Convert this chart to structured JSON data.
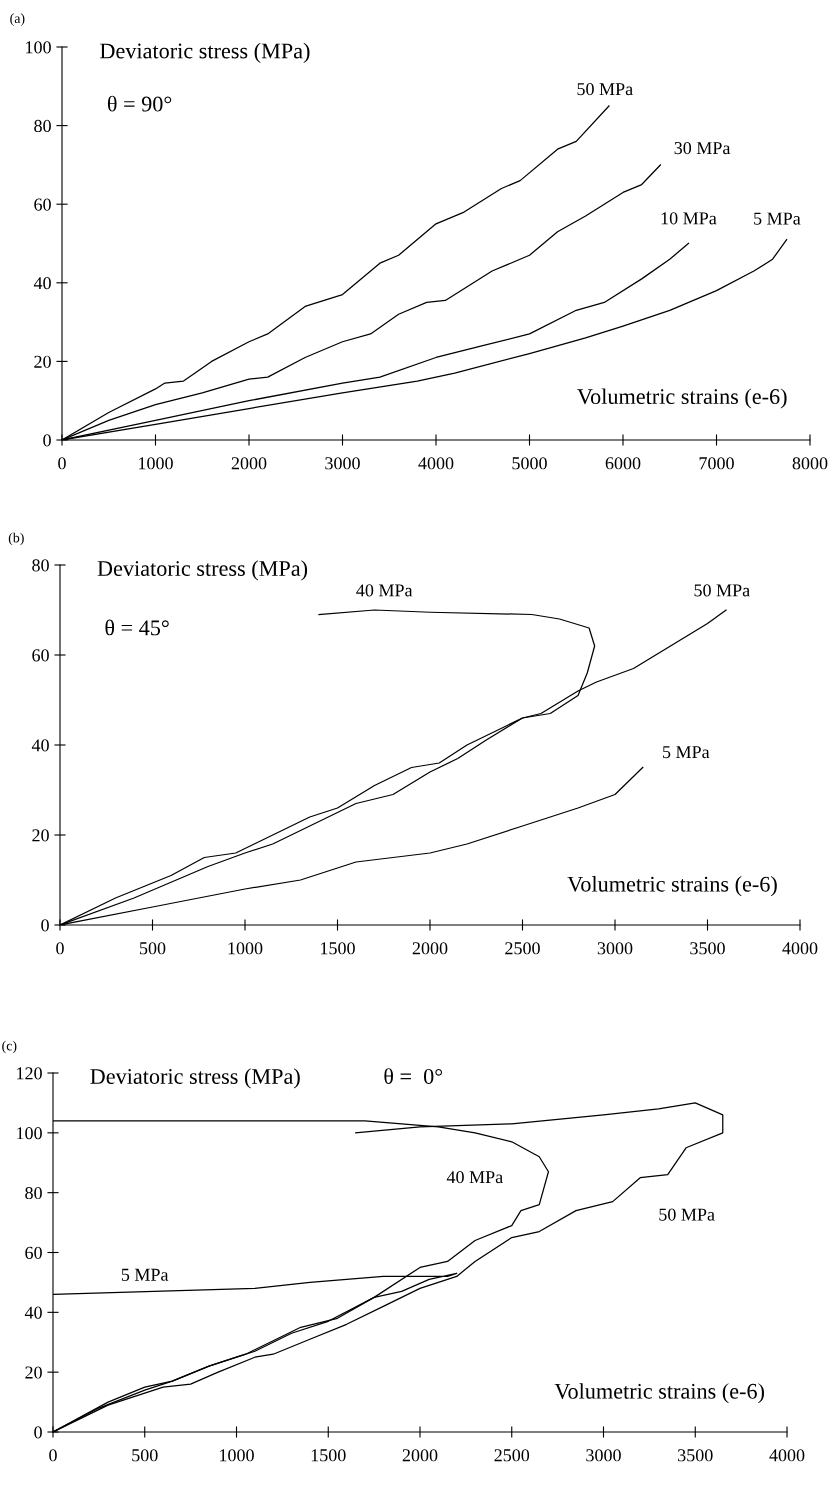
{
  "chart_data": [
    {
      "type": "line",
      "title": "(a)",
      "xlabel": "Volumetric strains (e-6)",
      "ylabel": "Deviatoric stress (MPa)",
      "xlim": [
        0,
        8000
      ],
      "ylim": [
        0,
        100
      ],
      "xticks": [
        0,
        1000,
        2000,
        3000,
        4000,
        5000,
        6000,
        7000,
        8000
      ],
      "yticks": [
        0,
        20,
        40,
        60,
        80,
        100
      ],
      "annotations": [
        "θ = 90°"
      ],
      "series": [
        {
          "name": "50 MPa",
          "color": "#000000",
          "x": [
            0,
            500,
            1000,
            1100,
            1300,
            1600,
            2000,
            2200,
            2600,
            3000,
            3400,
            3600,
            4000,
            4300,
            4700,
            4900,
            5300,
            5500,
            5850
          ],
          "values": [
            0,
            7,
            13,
            14.5,
            15,
            20,
            25,
            27,
            34,
            37,
            45,
            47,
            55,
            58,
            64,
            66,
            74,
            76,
            85
          ]
        },
        {
          "name": "30 MPa",
          "color": "#000000",
          "x": [
            0,
            500,
            1000,
            1500,
            2000,
            2200,
            2600,
            3000,
            3300,
            3600,
            3900,
            4100,
            4600,
            5000,
            5300,
            5600,
            6000,
            6200,
            6400
          ],
          "values": [
            0,
            5,
            9,
            12,
            15.5,
            16,
            21,
            25,
            27,
            32,
            35,
            35.5,
            43,
            47,
            53,
            57,
            63,
            65,
            70
          ]
        },
        {
          "name": "10 MPa",
          "color": "#000000",
          "x": [
            0,
            1000,
            2000,
            3000,
            3400,
            4000,
            4500,
            5000,
            5500,
            5800,
            6200,
            6500,
            6700
          ],
          "values": [
            0,
            5,
            10,
            14.5,
            16,
            21,
            24,
            27,
            33,
            35,
            41,
            46,
            50
          ]
        },
        {
          "name": "5 MPa",
          "color": "#000000",
          "x": [
            0,
            1000,
            2000,
            3000,
            3800,
            4200,
            5000,
            5600,
            6000,
            6500,
            7000,
            7400,
            7600,
            7750
          ],
          "values": [
            0,
            4,
            8,
            12,
            15,
            17,
            22,
            26,
            29,
            33,
            38,
            43,
            46,
            51
          ]
        }
      ]
    },
    {
      "type": "line",
      "title": "(b)",
      "xlabel": "Volumetric strains (e-6)",
      "ylabel": "Deviatoric stress (MPa)",
      "xlim": [
        0,
        4000
      ],
      "ylim": [
        0,
        80
      ],
      "xticks": [
        0,
        500,
        1000,
        1500,
        2000,
        2500,
        3000,
        3500,
        4000
      ],
      "yticks": [
        0,
        20,
        40,
        60,
        80
      ],
      "annotations": [
        "θ = 45°"
      ],
      "series": [
        {
          "name": "40 MPa",
          "color": "#000000",
          "x": [
            0,
            300,
            600,
            780,
            950,
            1150,
            1350,
            1500,
            1700,
            1900,
            2050,
            2200,
            2500,
            2650,
            2800,
            2850,
            2890,
            2860,
            2700,
            2550,
            2000,
            1700,
            1400
          ],
          "values": [
            0,
            6,
            11,
            15,
            16,
            20,
            24,
            26,
            31,
            35,
            36,
            40,
            46,
            47,
            51,
            56,
            62,
            66,
            68,
            69,
            69.5,
            70,
            69
          ]
        },
        {
          "name": "50 MPa",
          "color": "#000000",
          "x": [
            0,
            400,
            800,
            1000,
            1150,
            1400,
            1600,
            1800,
            2000,
            2150,
            2300,
            2500,
            2600,
            2800,
            2900,
            3100,
            3300,
            3500,
            3600
          ],
          "values": [
            0,
            6,
            13,
            16,
            18,
            23,
            27,
            29,
            34,
            37,
            41,
            46,
            47,
            52,
            54,
            57,
            62,
            67,
            70
          ]
        },
        {
          "name": "5 MPa",
          "color": "#000000",
          "x": [
            0,
            500,
            1000,
            1300,
            1600,
            2000,
            2200,
            2500,
            2800,
            3000,
            3150
          ],
          "values": [
            0,
            4,
            8,
            10,
            14,
            16,
            18,
            22,
            26,
            29,
            35
          ]
        }
      ]
    },
    {
      "type": "line",
      "title": "(c)",
      "xlabel": "Volumetric strains (e-6)",
      "ylabel": "Deviatoric stress (MPa)",
      "xlim": [
        0,
        4000
      ],
      "ylim": [
        0,
        120
      ],
      "xticks": [
        0,
        500,
        1000,
        1500,
        2000,
        2500,
        3000,
        3500,
        4000
      ],
      "yticks": [
        0,
        20,
        40,
        60,
        80,
        100,
        120
      ],
      "annotations": [
        "θ =  0°"
      ],
      "series": [
        {
          "name": "40 MPa",
          "color": "#000000",
          "x": [
            0,
            250,
            500,
            650,
            850,
            1000,
            1100,
            1300,
            1500,
            1750,
            2000,
            2150,
            2300,
            2500,
            2550,
            2650,
            2700,
            2650,
            2500,
            2300,
            2100,
            1700,
            0
          ],
          "values": [
            0,
            8,
            14,
            17,
            22,
            25,
            27,
            33,
            37,
            45,
            55,
            57,
            64,
            69,
            74,
            76,
            87,
            92,
            97,
            100,
            102,
            104,
            104
          ]
        },
        {
          "name": "50 MPa",
          "color": "#000000",
          "x": [
            0,
            300,
            600,
            750,
            900,
            1100,
            1200,
            1400,
            1600,
            1800,
            2000,
            2200,
            2300,
            2500,
            2650,
            2850,
            3050,
            3200,
            3350,
            3450,
            3650,
            3650,
            3500,
            3300,
            3000,
            2500,
            2000,
            1650
          ],
          "values": [
            0,
            9,
            15,
            16,
            20,
            25,
            26,
            31,
            36,
            42,
            48,
            52,
            57,
            65,
            67,
            74,
            77,
            85,
            86,
            95,
            100,
            106,
            110,
            108,
            106,
            103,
            102,
            100
          ]
        },
        {
          "name": "5 MPa",
          "color": "#000000",
          "x": [
            0,
            300,
            500,
            650,
            850,
            1050,
            1250,
            1350,
            1550,
            1750,
            1900,
            2050,
            2200,
            2150,
            1950,
            1800,
            1400,
            1100,
            0
          ],
          "values": [
            0,
            10,
            15,
            17,
            22,
            26,
            32,
            35,
            38,
            45,
            47,
            51,
            53,
            52,
            52,
            52,
            50,
            48,
            46
          ]
        }
      ]
    }
  ]
}
